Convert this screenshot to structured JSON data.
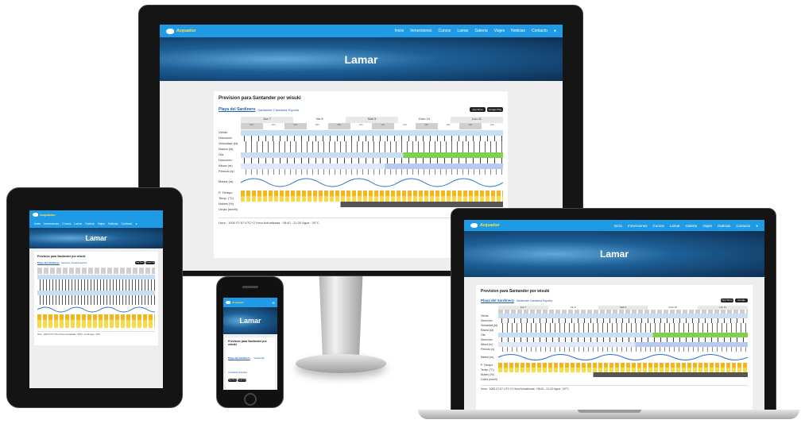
{
  "site": {
    "logo_text": "Acquaduo",
    "hero_title": "Lamar",
    "menu_icon": "menu-icon",
    "nav": [
      "Inicio",
      "Inmersiones",
      "Cursos",
      "Lamar",
      "Galeria",
      "Viajes",
      "Noticias",
      "Contacto"
    ],
    "user_icon": "user-icon"
  },
  "widget": {
    "title": "Prevision para Santander por wisuki",
    "place": "Playa del Sardinero",
    "region": "Santander Cantabria España",
    "app_store": "App Store",
    "google_play": "Google Play",
    "days": [
      "Jue 7",
      "Vie 8",
      "Sáb 9",
      "Dom 10",
      "Lun 11"
    ],
    "rows": [
      "Viento",
      "Dirección",
      "Velocidad (kt)",
      "Racha (kt)",
      "Ola",
      "Dirección",
      "Altura (m)",
      "Periodo (s)",
      "Marea (m)",
      "P. Tiempo",
      "Temp. (°C)",
      "Nubes (%)",
      "Lluvia (mm/h)"
    ],
    "footer": "Hora : 1000 07:57 UTC+2   Hora Actualizada : 08:40 - 21:20   Agua : 20°C",
    "hours": [
      "00h",
      "02h",
      "04h",
      "06h",
      "08h",
      "10h",
      "12h",
      "14h",
      "16h",
      "18h",
      "20h",
      "22h"
    ]
  },
  "colors": {
    "nav_bar": "#1e9be4",
    "wind_cell": "#c9ddf3",
    "wave_cell_strong": "#7dd14b",
    "sun": "#f5b41b",
    "temp_cell": "#f7d94a",
    "cloud_cell": "#555555"
  }
}
